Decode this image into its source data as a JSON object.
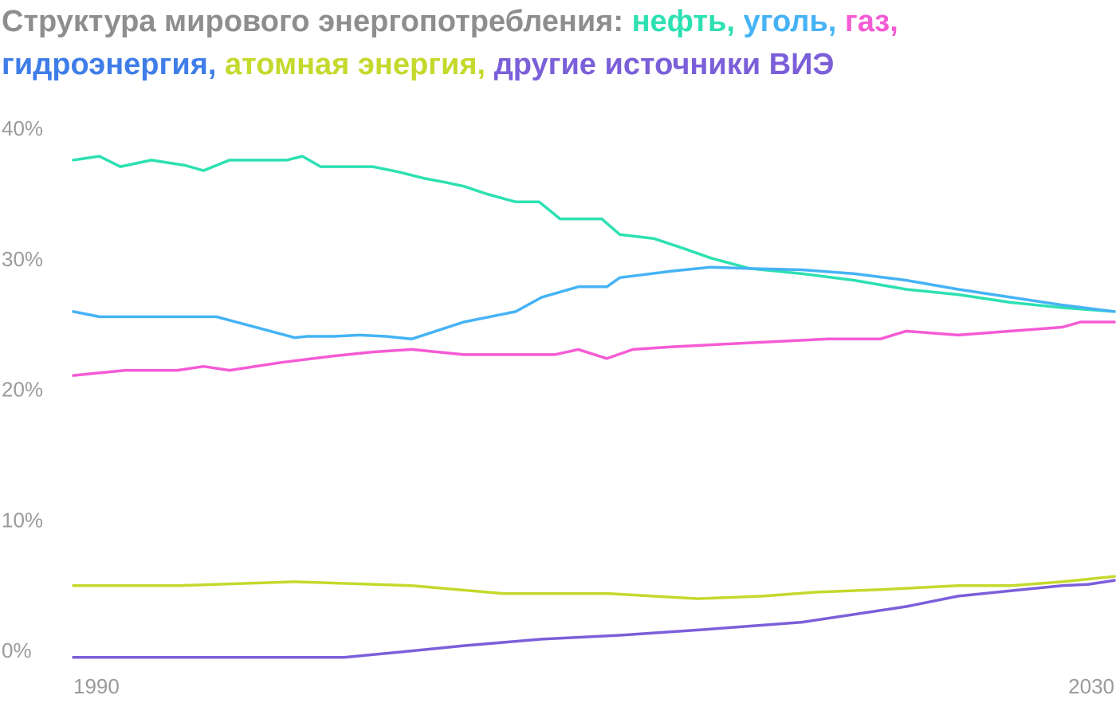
{
  "title": {
    "prefix": "Структура мирового энергопотребления:",
    "parts": [
      {
        "text": "нефть,",
        "color": "#2de0b2"
      },
      {
        "text": "уголь,",
        "color": "#45b3f5"
      },
      {
        "text": "газ,",
        "color": "#f55bd5"
      },
      {
        "text": "гидроэнергия,",
        "color": "#3f7de8"
      },
      {
        "text": "атомная энергия,",
        "color": "#c4d92c"
      },
      {
        "text": "другие источники ВИЭ",
        "color": "#7b5fd9"
      }
    ],
    "prefix_color": "#8e8e8e"
  },
  "chart_data": {
    "type": "line",
    "title": "Структура мирового энергопотребления: нефть, уголь, газ, гидроэнергия, атомная энергия, другие источники ВИЭ",
    "xlabel": "",
    "ylabel": "",
    "xlim": [
      1990,
      2030
    ],
    "ylim": [
      -0.6,
      40
    ],
    "yticks": [
      "0%",
      "10%",
      "20%",
      "30%",
      "40%"
    ],
    "ytick_values": [
      0,
      10,
      20,
      30,
      40
    ],
    "xticks": [
      "1990",
      "2030"
    ],
    "xtick_values": [
      1990,
      2030
    ],
    "grid": false,
    "legend": "in-title",
    "series": [
      {
        "name": "нефть",
        "color": "#2de0b2",
        "x": [
          1990,
          1991,
          1991.8,
          1993,
          1994.3,
          1995,
          1996,
          1997,
          1998.2,
          1998.8,
          1999.5,
          2000.4,
          2001.5,
          2002.5,
          2003.5,
          2004.3,
          2005,
          2005.9,
          2007,
          2007.9,
          2008.7,
          2009.5,
          2010.3,
          2011,
          2012.3,
          2013.5,
          2014.5,
          2016,
          2018,
          2020,
          2022,
          2024,
          2026,
          2028,
          2030
        ],
        "y": [
          37.5,
          37.8,
          37,
          37.5,
          37.1,
          36.7,
          37.5,
          37.5,
          37.5,
          37.8,
          37,
          37,
          37,
          36.6,
          36.1,
          35.8,
          35.5,
          34.9,
          34.3,
          34.3,
          33,
          33,
          33,
          31.8,
          31.5,
          30.7,
          30,
          29.2,
          28.8,
          28.3,
          27.6,
          27.2,
          26.6,
          26.2,
          25.9
        ]
      },
      {
        "name": "уголь",
        "color": "#45b3f5",
        "x": [
          1990,
          1991,
          1994.5,
          1995.5,
          1998.5,
          1999,
          2000,
          2001,
          2002,
          2003,
          2005,
          2007,
          2008,
          2009.4,
          2010.5,
          2011,
          2013,
          2014.5,
          2016,
          2018,
          2020,
          2022,
          2024,
          2026,
          2028,
          2030
        ],
        "y": [
          25.9,
          25.5,
          25.5,
          25.5,
          23.9,
          24,
          24,
          24.1,
          24,
          23.8,
          25.1,
          25.9,
          27,
          27.8,
          27.8,
          28.5,
          29,
          29.3,
          29.2,
          29.1,
          28.8,
          28.3,
          27.6,
          27,
          26.4,
          25.9
        ]
      },
      {
        "name": "газ",
        "color": "#f55bd5",
        "x": [
          1990,
          1991,
          1992,
          1994,
          1995,
          1996,
          1998,
          2000,
          2001.5,
          2003,
          2005,
          2007,
          2008.5,
          2009.4,
          2010.5,
          2011.5,
          2013,
          2015,
          2017,
          2019,
          2021,
          2022,
          2024,
          2026,
          2028,
          2028.7,
          2030
        ],
        "y": [
          21,
          21.2,
          21.4,
          21.4,
          21.7,
          21.4,
          22,
          22.5,
          22.8,
          23,
          22.6,
          22.6,
          22.6,
          23,
          22.3,
          23,
          23.2,
          23.4,
          23.6,
          23.8,
          23.8,
          24.4,
          24.1,
          24.4,
          24.7,
          25.1,
          25.1
        ]
      },
      {
        "name": "гидроэнергия",
        "color": "#3f7de8",
        "x": [],
        "y": []
      },
      {
        "name": "атомная энергия",
        "color": "#c4d92c",
        "x": [
          1990,
          1994,
          1998.5,
          2003,
          2006.5,
          2008,
          2009.5,
          2010.5,
          2014,
          2016.5,
          2018.5,
          2021,
          2024,
          2026,
          2028,
          2030
        ],
        "y": [
          4.9,
          4.9,
          5.2,
          4.9,
          4.3,
          4.3,
          4.3,
          4.3,
          3.9,
          4.1,
          4.4,
          4.6,
          4.9,
          4.9,
          5.2,
          5.6
        ]
      },
      {
        "name": "другие источники ВИЭ",
        "color": "#7b5fd9",
        "x": [
          1990,
          2000.4,
          2003,
          2005,
          2008,
          2011,
          2014,
          2018,
          2022,
          2024,
          2026,
          2028,
          2029,
          2030
        ],
        "y": [
          -0.6,
          -0.6,
          -0.1,
          0.3,
          0.8,
          1.1,
          1.5,
          2.1,
          3.3,
          4.1,
          4.5,
          4.9,
          5.0,
          5.3
        ]
      }
    ]
  }
}
